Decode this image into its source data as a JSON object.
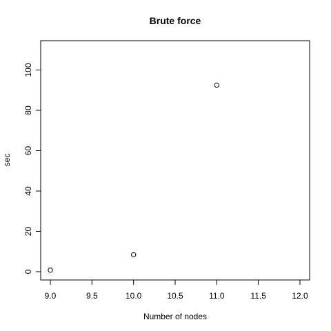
{
  "chart_data": {
    "type": "scatter",
    "title": "Brute force",
    "xlabel": "Number of nodes",
    "ylabel": "sec",
    "x": [
      9,
      10,
      11
    ],
    "y": [
      0.8,
      8.4,
      92.5
    ],
    "xlim": [
      9,
      12
    ],
    "ylim": [
      0,
      110
    ],
    "xticks": [
      9,
      9.5,
      10,
      10.5,
      11,
      11.5,
      12
    ],
    "xtick_labels": [
      "9.0",
      "9.5",
      "10.0",
      "10.5",
      "11.0",
      "11.5",
      "12.0"
    ],
    "yticks": [
      0,
      20,
      40,
      60,
      80,
      100
    ],
    "ytick_labels": [
      "0",
      "20",
      "40",
      "60",
      "80",
      "100"
    ],
    "grid": false,
    "marker": "open-circle",
    "colors": {
      "point": "#000000",
      "background": "#ffffff"
    }
  }
}
